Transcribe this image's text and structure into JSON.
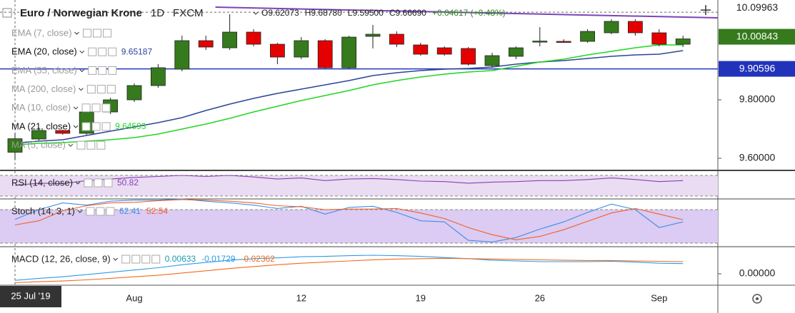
{
  "chart_data": [
    {
      "type": "candlestick",
      "title": "Euro / Norwegian Krone",
      "interval": "1D",
      "source": "FXCM",
      "ohlc_header": {
        "prefixes": [
          "O",
          "H",
          "L",
          "C"
        ],
        "labels": [
          "9.62073",
          "9.68780",
          "9.59500",
          "9.66690"
        ],
        "change": "+0.04617 (+0.48%)"
      },
      "categories": [
        "25 Jul '19",
        null,
        null,
        null,
        null,
        "Aug",
        null,
        null,
        null,
        null,
        null,
        null,
        "12",
        null,
        null,
        null,
        null,
        "19",
        null,
        null,
        null,
        null,
        "26",
        null,
        null,
        null,
        null,
        "Sep",
        null
      ],
      "open": [
        9.62073,
        9.6659,
        9.6951,
        9.6854,
        9.7585,
        9.8,
        9.8488,
        9.9049,
        10.0024,
        9.978,
        10.0317,
        9.9902,
        9.9463,
        10.0024,
        9.9098,
        10.0171,
        10.0244,
        9.9878,
        9.978,
        9.9756,
        9.9171,
        9.9488,
        9.999,
        10.0,
        10.0,
        10.0293,
        10.0683,
        10.0293,
        9.9902
      ],
      "high": [
        9.6878,
        9.7049,
        9.6976,
        9.7659,
        9.8073,
        9.8561,
        9.922,
        10.0195,
        10.0195,
        10.0927,
        10.0415,
        9.9951,
        10.0146,
        10.0073,
        10.0195,
        10.0561,
        10.0341,
        9.9951,
        9.9829,
        9.9805,
        9.961,
        9.9829,
        10.0488,
        10.0073,
        10.0415,
        10.0756,
        10.0756,
        10.0415,
        10.0195
      ],
      "low": [
        9.595,
        9.661,
        9.6805,
        9.6805,
        9.7512,
        9.7927,
        9.8415,
        9.8976,
        9.9707,
        9.9707,
        9.9829,
        9.922,
        9.939,
        9.9049,
        9.9049,
        9.9756,
        9.9805,
        9.9512,
        9.9512,
        9.9171,
        9.9098,
        9.939,
        9.9829,
        9.9951,
        9.9951,
        10.0244,
        10.0195,
        9.9829,
        9.9805
      ],
      "close": [
        9.6669,
        9.6951,
        9.6854,
        9.7585,
        9.8,
        9.8488,
        9.9098,
        10.0024,
        9.9805,
        10.0317,
        9.9902,
        9.9463,
        10.0024,
        9.9098,
        10.0146,
        10.0244,
        9.9902,
        9.9561,
        9.9561,
        9.922,
        9.9512,
        9.978,
        10.001,
        9.999,
        10.0341,
        10.0683,
        10.0293,
        9.9902,
        10.00843
      ],
      "up_color": "#357a1c",
      "down_color": "#e50000",
      "series": [
        {
          "name": "EMA (7, close)",
          "visible": false
        },
        {
          "name": "EMA (20, close)",
          "color": "#2e4599",
          "values": [
            9.65187,
            9.6585,
            9.6634,
            9.678,
            9.6927,
            9.7073,
            9.722,
            9.739,
            9.7634,
            9.7854,
            9.8049,
            9.822,
            9.8366,
            9.8512,
            9.8659,
            9.8829,
            9.8927,
            9.9,
            9.9049,
            9.9073,
            9.9122,
            9.922,
            9.9293,
            9.9341,
            9.9415,
            9.9488,
            9.9537,
            9.9561,
            9.9683
          ]
        },
        {
          "name": "EMA (55, close)",
          "visible": false
        },
        {
          "name": "MA (200, close)",
          "visible": false
        },
        {
          "name": "MA (10, close)",
          "visible": false
        },
        {
          "name": "MA (21, close)",
          "color": "#22d622",
          "values": [
            9.64593,
            9.6512,
            9.6537,
            9.6585,
            9.6634,
            9.6707,
            9.6829,
            9.7,
            9.7171,
            9.7366,
            9.7585,
            9.778,
            9.7976,
            9.8146,
            9.8317,
            9.8512,
            9.8659,
            9.878,
            9.8878,
            9.8951,
            9.9,
            9.9146,
            9.9293,
            9.939,
            9.9537,
            9.9659,
            9.978,
            9.9878,
            9.9878
          ]
        },
        {
          "name": "MA (5, close)",
          "visible": false
        }
      ],
      "hline": 9.90596,
      "hline_color": "#2233bb",
      "trendline": [
        10.117,
        10.0805
      ],
      "trendline_color": "#7b44b8",
      "crosshair_price": 10.09963,
      "last_price": 10.00843,
      "ylim": [
        9.561,
        10.1415
      ],
      "yticks": [
        {
          "value": 9.8,
          "label": "9.80000"
        },
        {
          "value": 9.6,
          "label": "9.60000"
        }
      ]
    },
    {
      "type": "line",
      "title": "RSI (14, close)",
      "band": [
        30,
        70
      ],
      "band_color": "#eadcf2",
      "series": [
        {
          "color": "#8a3fb5",
          "values": [
            50.82,
            55,
            54,
            60,
            63,
            66,
            68,
            70,
            68,
            70,
            67,
            63,
            65,
            60,
            63,
            64,
            62,
            59,
            58,
            55,
            57,
            58,
            60,
            60,
            62,
            65,
            62,
            58,
            60
          ]
        }
      ],
      "ylim": [
        25.86,
        78.28
      ]
    },
    {
      "type": "line",
      "title": "Stoch (14, 3, 1)",
      "band": [
        20,
        80
      ],
      "band_color": "#dccbf2",
      "series": [
        {
          "color": "#3d8fe8",
          "values": [
            62.41,
            80,
            92,
            88,
            95,
            97,
            97,
            99,
            95,
            92,
            88,
            82,
            86,
            72,
            84,
            86,
            75,
            60,
            58,
            25,
            22,
            30,
            45,
            58,
            75,
            90,
            80,
            48,
            58
          ]
        },
        {
          "color": "#f0602a",
          "values": [
            52.54,
            60,
            78,
            87,
            92,
            93,
            96,
            98,
            97,
            95,
            92,
            87,
            85,
            80,
            81,
            81,
            82,
            74,
            64,
            48,
            35,
            26,
            32,
            44,
            59,
            74,
            82,
            72,
            62
          ]
        }
      ],
      "ylim": [
        14.89,
        97.87
      ]
    },
    {
      "type": "line",
      "title": "MACD (12, 26, close, 9)",
      "histogram_value": 0.00633,
      "histogram_color": "#1e9bb0",
      "series": [
        {
          "color": "#2e9be8",
          "values": [
            -0.01729,
            -0.012,
            -0.008,
            -0.002,
            0.004,
            0.01,
            0.016,
            0.024,
            0.03,
            0.036,
            0.04,
            0.042,
            0.045,
            0.046,
            0.048,
            0.049,
            0.048,
            0.046,
            0.043,
            0.04,
            0.036,
            0.034,
            0.032,
            0.032,
            0.032,
            0.033,
            0.031,
            0.028,
            0.027
          ]
        },
        {
          "color": "#f26b1d",
          "values": [
            -0.02362,
            -0.021,
            -0.019,
            -0.016,
            -0.012,
            -0.008,
            -0.004,
            0.002,
            0.008,
            0.014,
            0.019,
            0.024,
            0.028,
            0.031,
            0.034,
            0.037,
            0.039,
            0.04,
            0.041,
            0.04,
            0.039,
            0.038,
            0.037,
            0.036,
            0.035,
            0.035,
            0.034,
            0.033,
            0.032
          ]
        }
      ],
      "ylim": [
        -0.0302,
        0.0698
      ],
      "yticks": [
        {
          "value": 0,
          "label": "0.00000"
        }
      ]
    }
  ]
}
